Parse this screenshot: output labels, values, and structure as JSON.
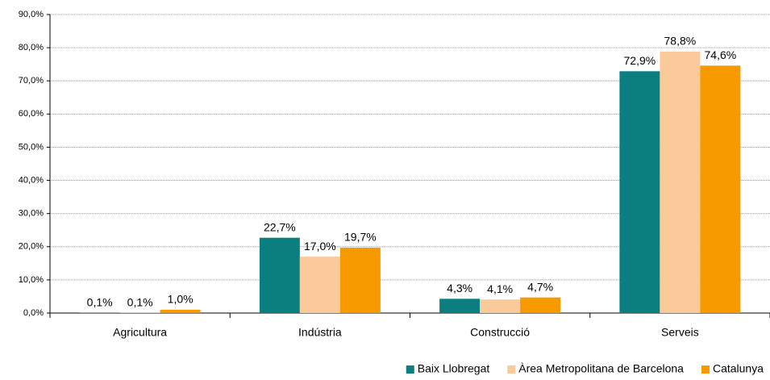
{
  "chart_data": {
    "type": "bar",
    "categories": [
      "Agricultura",
      "Indústria",
      "Construcció",
      "Serveis"
    ],
    "series": [
      {
        "name": "Baix Llobregat",
        "color": "#0b7f7f",
        "values": [
          0.1,
          22.7,
          4.3,
          72.9
        ],
        "value_labels": [
          "0,1%",
          "22,7%",
          "4,3%",
          "72,9%"
        ]
      },
      {
        "name": "Àrea Metropolitana de Barcelona",
        "color": "#fbca9b",
        "values": [
          0.1,
          17.0,
          4.1,
          78.8
        ],
        "value_labels": [
          "0,1%",
          "17,0%",
          "4,1%",
          "78,8%"
        ]
      },
      {
        "name": "Catalunya",
        "color": "#f79a00",
        "values": [
          1.0,
          19.7,
          4.7,
          74.6
        ],
        "value_labels": [
          "1,0%",
          "19,7%",
          "4,7%",
          "74,6%"
        ]
      }
    ],
    "ylim": [
      0,
      90
    ],
    "yticks": [
      {
        "value": 0,
        "label": "0,0%"
      },
      {
        "value": 10,
        "label": "10,0%"
      },
      {
        "value": 20,
        "label": "20,0%"
      },
      {
        "value": 30,
        "label": "30,0%"
      },
      {
        "value": 40,
        "label": "40,0%"
      },
      {
        "value": 50,
        "label": "50,0%"
      },
      {
        "value": 60,
        "label": "60,0%"
      },
      {
        "value": 70,
        "label": "70,0%"
      },
      {
        "value": 80,
        "label": "80,0%"
      },
      {
        "value": 90,
        "label": "90,0%"
      }
    ],
    "grid": true,
    "legend": "bottom-right"
  }
}
